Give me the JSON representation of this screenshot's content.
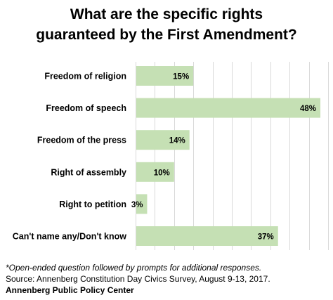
{
  "title_lines": [
    "What are the specific rights",
    "guaranteed by the First Amendment?"
  ],
  "chart_data": {
    "type": "bar",
    "orientation": "horizontal",
    "title": "What are the specific rights guaranteed by the First Amendment?",
    "categories": [
      "Freedom of religion",
      "Freedom of speech",
      "Freedom of the press",
      "Right of assembly",
      "Right to petition",
      "Can't name any/Don't know"
    ],
    "values": [
      15,
      48,
      14,
      10,
      3,
      37
    ],
    "data_labels": [
      "15%",
      "48%",
      "14%",
      "10%",
      "3%",
      "37%"
    ],
    "xlim": [
      0,
      50
    ],
    "xlabel": "",
    "ylabel": "",
    "grid": true,
    "legend": false,
    "bar_color": "#c5e0b4"
  },
  "footer": {
    "note": "*Open-ended question followed by prompts for additional responses.",
    "source": "Source: Annenberg Constitution Day Civics Survey, August 9-13, 2017.",
    "org": "Annenberg Public Policy Center"
  }
}
